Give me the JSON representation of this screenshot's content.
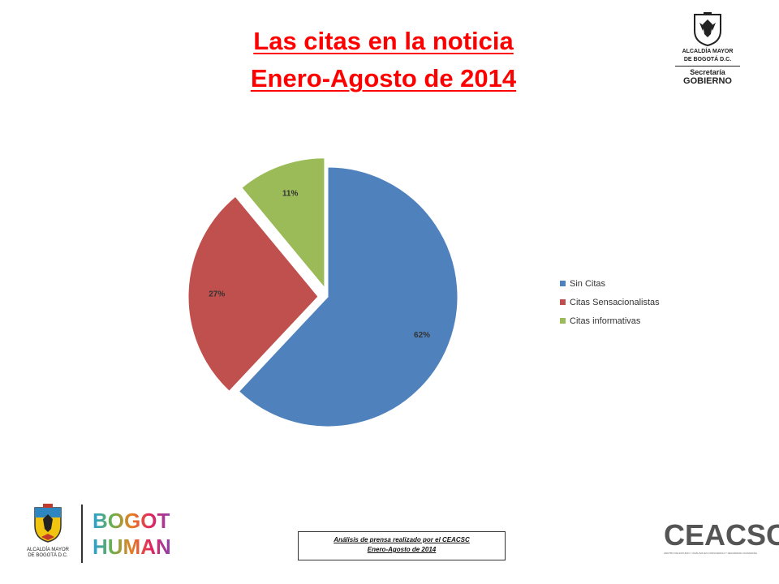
{
  "header": {
    "title_line1": "Las citas en la noticia",
    "title_line2": "Enero-Agosto de 2014"
  },
  "logo_top_right": {
    "line1": "ALCALDÍA MAYOR",
    "line2": "DE BOGOTÁ D.C.",
    "line3": "Secretaría",
    "line4": "GOBIERNO",
    "icon": "bogota-coat-of-arms"
  },
  "chart_data": {
    "type": "pie",
    "slices": [
      {
        "label": "Sin Citas",
        "value": 62,
        "display": "62%",
        "color": "#4f81bd"
      },
      {
        "label": "Citas Sensacionalistas",
        "value": 27,
        "display": "27%",
        "color": "#c0504d"
      },
      {
        "label": "Citas informativas",
        "value": 11,
        "display": "11%",
        "color": "#9bbb59"
      }
    ],
    "legend_position": "right",
    "exploded": true
  },
  "footer": {
    "logo_left_caption_1": "ALCALDÍA MAYOR",
    "logo_left_caption_2": "DE BOGOTÁ D.C.",
    "bogota_humana_1": "BOGOTÁ",
    "bogota_humana_2": "HUMANA",
    "note_line1": "Análisis de prensa realizado por el CEACSC",
    "note_line2": "Enero-Agosto de 2014",
    "ceacsc_word": "CEACSC",
    "ceacsc_sub": "CENTRO DE ESTUDIO Y ANÁLISIS EN CONVIVENCIA Y SEGURIDAD CIUDADANA"
  }
}
